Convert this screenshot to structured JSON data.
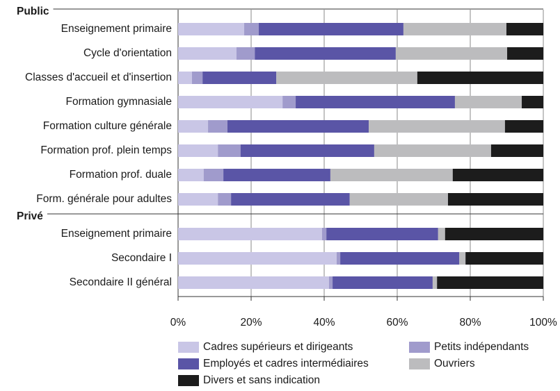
{
  "chart_data": {
    "type": "stacked-bar-horizontal",
    "categories": [
      "Public",
      "Enseignement primaire",
      "Cycle d'orientation",
      "Classes d'accueil et d'insertion",
      "Formation gymnasiale",
      "Formation culture générale",
      "Formation prof. plein temps",
      "Formation prof. duale",
      "Form. générale pour adultes",
      "Privé",
      "Enseignement primaire",
      "Secondaire I",
      "Secondaire II général"
    ],
    "series": [
      {
        "name": "Cadres supérieurs et dirigeants",
        "color": "#c9c6e6",
        "values": [
          null,
          18.1,
          16.0,
          3.8,
          28.6,
          8.2,
          10.9,
          7.0,
          10.9,
          null,
          39.4,
          43.4,
          41.3
        ]
      },
      {
        "name": "Petits indépendants",
        "color": "#a09bcc",
        "values": [
          null,
          4.0,
          5.0,
          2.9,
          3.6,
          5.3,
          6.2,
          5.4,
          3.6,
          null,
          1.2,
          1.0,
          1.0
        ]
      },
      {
        "name": "Employés et cadres intermédiaires",
        "color": "#5a55a6",
        "values": [
          null,
          39.6,
          38.6,
          20.2,
          43.6,
          38.7,
          36.6,
          29.3,
          32.5,
          null,
          30.6,
          32.6,
          27.4
        ]
      },
      {
        "name": "Ouvriers",
        "color": "#bcbcbe",
        "values": [
          null,
          28.2,
          30.5,
          38.6,
          18.3,
          37.3,
          32.0,
          33.5,
          26.9,
          null,
          1.9,
          1.7,
          1.2
        ]
      },
      {
        "name": "Divers et sans indication",
        "color": "#1c1c1c",
        "values": [
          null,
          10.1,
          9.9,
          34.5,
          5.9,
          10.5,
          14.3,
          24.8,
          26.1,
          null,
          26.9,
          21.3,
          29.1
        ]
      }
    ],
    "xlim": [
      0,
      100
    ],
    "xticks": [
      {
        "value": 0,
        "label": "0%"
      },
      {
        "value": 20,
        "label": "20%"
      },
      {
        "value": 40,
        "label": "40%"
      },
      {
        "value": 60,
        "label": "60%"
      },
      {
        "value": 80,
        "label": "80%"
      },
      {
        "value": 100,
        "label": "100%"
      }
    ],
    "grid": true
  }
}
